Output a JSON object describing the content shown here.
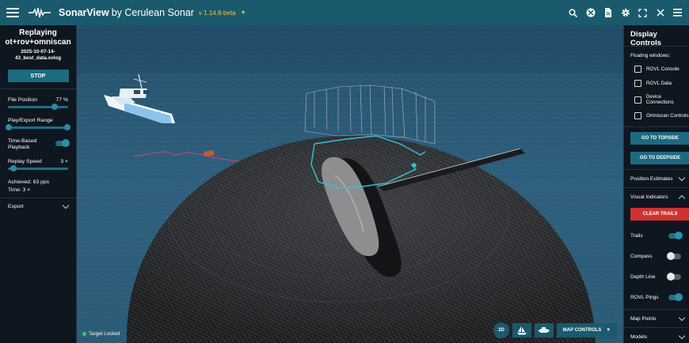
{
  "header": {
    "app_name": "SonarView",
    "app_by": "by Cerulean Sonar",
    "version": "v 1.14.8-beta"
  },
  "left_panel": {
    "replay_title": "Replaying ot+rov+omniscan",
    "replay_file": "2025-10-07-14-43_best_data.svlog",
    "stop_label": "STOP",
    "file_position_label": "File Position",
    "file_position_value": "77 %",
    "file_position_fraction": 0.77,
    "play_export_label": "Play/Export Range",
    "time_based_label": "Time-Based Playback",
    "time_based_on": true,
    "replay_speed_label": "Replay Speed",
    "replay_speed_value": "3 ×",
    "achieved_label": "Achieved: 63 pps",
    "time_label": "Time: 3 ×",
    "export_label": "Export"
  },
  "right_panel": {
    "title": "Display Controls",
    "floating_label": "Floating windows:",
    "floating_windows": [
      "ROVL Console",
      "ROVL Data",
      "Device Connections",
      "Omniscan Controls"
    ],
    "go_topside": "GO TO TOPSIDE",
    "go_deepside": "GO TO DEEPSIDE",
    "position_estimates": "Position Estimates",
    "visual_indicators": "Visual Indicators",
    "clear_trails": "CLEAR TRAILS",
    "indicators": [
      {
        "label": "Trails",
        "on": true
      },
      {
        "label": "Compass",
        "on": false
      },
      {
        "label": "Depth Line",
        "on": false
      },
      {
        "label": "ROVL Pings",
        "on": true
      }
    ],
    "map_points": "Map Points",
    "models": "Models"
  },
  "scene": {
    "target_status": "Target Locked",
    "btn_2d": "2D",
    "map_controls": "MAP CONTROLS"
  },
  "colors": {
    "header_bg": "#1a5a6c",
    "accent": "#1c6b80",
    "version": "#f3c043",
    "trail_cyan": "#2ec4d6",
    "ping_magenta": "#d0407a",
    "danger": "#d32f2f"
  }
}
